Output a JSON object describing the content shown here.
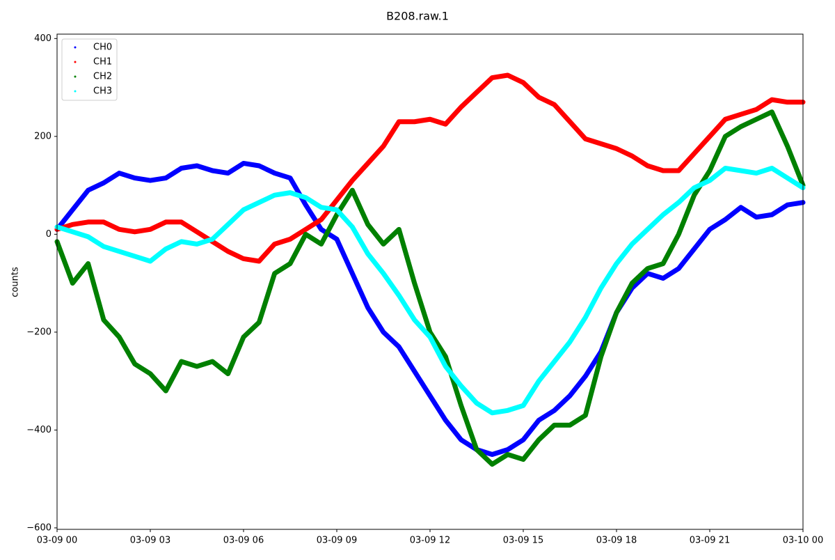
{
  "chart_data": {
    "type": "scatter",
    "title": "B208.raw.1",
    "y_label": "counts",
    "x": [
      0,
      0.5,
      1,
      1.5,
      2,
      2.5,
      3,
      3.5,
      4,
      4.5,
      5,
      5.5,
      6,
      6.5,
      7,
      7.5,
      8,
      8.5,
      9,
      9.5,
      10,
      10.5,
      11,
      11.5,
      12,
      12.5,
      13,
      13.5,
      14,
      14.5,
      15,
      15.5,
      16,
      16.5,
      17,
      17.5,
      18,
      18.5,
      19,
      19.5,
      20,
      20.5,
      21,
      21.5,
      22,
      22.5,
      23,
      23.5,
      24
    ],
    "series": [
      {
        "name": "CH0",
        "color": "#0000ff",
        "values": [
          10,
          50,
          90,
          105,
          125,
          115,
          110,
          115,
          135,
          140,
          130,
          125,
          145,
          140,
          125,
          115,
          60,
          10,
          -10,
          -80,
          -150,
          -200,
          -230,
          -280,
          -330,
          -380,
          -420,
          -440,
          -450,
          -440,
          -420,
          -380,
          -360,
          -330,
          -290,
          -240,
          -160,
          -110,
          -80,
          -90,
          -70,
          -30,
          10,
          30,
          55,
          35,
          40,
          60,
          65
        ]
      },
      {
        "name": "CH1",
        "color": "#ff0000",
        "values": [
          10,
          20,
          25,
          25,
          10,
          5,
          10,
          25,
          25,
          5,
          -15,
          -35,
          -50,
          -55,
          -20,
          -10,
          10,
          30,
          70,
          110,
          145,
          180,
          230,
          230,
          235,
          225,
          260,
          290,
          320,
          325,
          310,
          280,
          265,
          230,
          195,
          185,
          175,
          160,
          140,
          130,
          130,
          165,
          200,
          235,
          245,
          255,
          275,
          270,
          270
        ]
      },
      {
        "name": "CH2",
        "color": "#008000",
        "values": [
          -15,
          -100,
          -60,
          -175,
          -210,
          -265,
          -285,
          -320,
          -260,
          -270,
          -260,
          -285,
          -210,
          -180,
          -80,
          -60,
          0,
          -20,
          40,
          90,
          20,
          -20,
          10,
          -100,
          -200,
          -250,
          -350,
          -440,
          -470,
          -450,
          -460,
          -420,
          -390,
          -390,
          -370,
          -250,
          -160,
          -100,
          -70,
          -60,
          0,
          80,
          130,
          200,
          220,
          235,
          250,
          180,
          100
        ]
      },
      {
        "name": "CH3",
        "color": "#00ffff",
        "values": [
          15,
          5,
          -5,
          -25,
          -35,
          -45,
          -55,
          -30,
          -15,
          -20,
          -10,
          20,
          50,
          65,
          80,
          85,
          75,
          55,
          50,
          15,
          -40,
          -80,
          -125,
          -175,
          -210,
          -270,
          -310,
          -345,
          -365,
          -360,
          -350,
          -300,
          -260,
          -220,
          -170,
          -110,
          -60,
          -20,
          10,
          40,
          65,
          95,
          110,
          135,
          130,
          125,
          135,
          115,
          95
        ]
      }
    ],
    "xlim": [
      0,
      24
    ],
    "xticks": [
      {
        "value": 0,
        "label": "03-09 00"
      },
      {
        "value": 3,
        "label": "03-09 03"
      },
      {
        "value": 6,
        "label": "03-09 06"
      },
      {
        "value": 9,
        "label": "03-09 09"
      },
      {
        "value": 12,
        "label": "03-09 12"
      },
      {
        "value": 15,
        "label": "03-09 15"
      },
      {
        "value": 18,
        "label": "03-09 18"
      },
      {
        "value": 21,
        "label": "03-09 21"
      },
      {
        "value": 24,
        "label": "03-10 00"
      }
    ],
    "ylim": [
      -603,
      409
    ],
    "yticks": [
      {
        "value": -600,
        "label": "−600"
      },
      {
        "value": -400,
        "label": "−400"
      },
      {
        "value": -200,
        "label": "−200"
      },
      0,
      200,
      400
    ],
    "legend": "upper left",
    "grid": false
  }
}
